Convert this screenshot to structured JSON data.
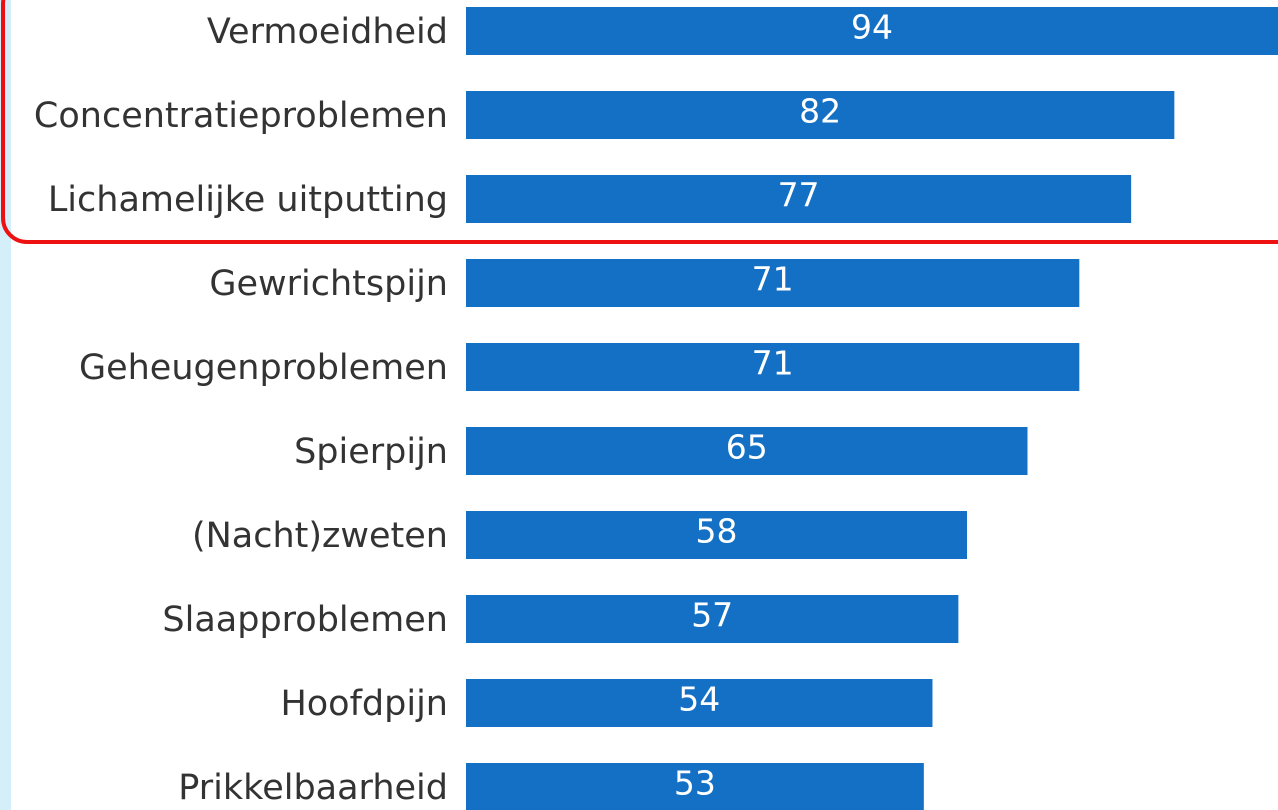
{
  "chart_data": {
    "type": "bar",
    "orientation": "horizontal",
    "color": "#1470c4",
    "categories": [
      "Vermoeidheid",
      "Concentratieproblemen",
      "Lichamelijke uitputting",
      "Gewrichtspijn",
      "Geheugenproblemen",
      "Spierpijn",
      "(Nacht)zweten",
      "Slaapproblemen",
      "Hoofdpijn",
      "Prikkelbaarheid"
    ],
    "values": [
      94,
      82,
      77,
      71,
      71,
      65,
      58,
      57,
      54,
      53
    ]
  }
}
